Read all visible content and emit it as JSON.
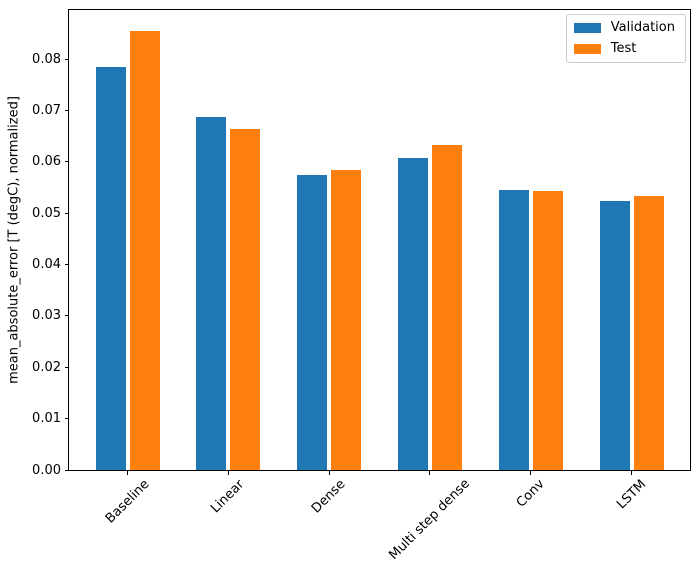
{
  "figure": {
    "background": "#ffffff",
    "text_color": "#000000",
    "spine_color": "#000000"
  },
  "chart_data": {
    "type": "bar",
    "title": "",
    "xlabel": "",
    "ylabel": "mean_absolute_error [T (degC), normalized]",
    "categories": [
      "Baseline",
      "Linear",
      "Dense",
      "Multi step dense",
      "Conv",
      "LSTM"
    ],
    "series": [
      {
        "name": "Validation",
        "color": "#1f77b4",
        "values": [
          0.0785,
          0.0688,
          0.0574,
          0.0607,
          0.0546,
          0.0525
        ]
      },
      {
        "name": "Test",
        "color": "#ff7f0e",
        "values": [
          0.0855,
          0.0664,
          0.0584,
          0.0634,
          0.0544,
          0.0533
        ]
      }
    ],
    "ylim": [
      0,
      0.0896
    ],
    "ytick_values": [
      0,
      0.01,
      0.02,
      0.03,
      0.04,
      0.05,
      0.06,
      0.07,
      0.08
    ],
    "ytick_labels": [
      "0.00",
      "0.01",
      "0.02",
      "0.03",
      "0.04",
      "0.05",
      "0.06",
      "0.07",
      "0.08"
    ],
    "xtick_rotation_deg": 45,
    "grid": false,
    "legend": {
      "position": "upper right",
      "entries": [
        "Validation",
        "Test"
      ]
    }
  }
}
